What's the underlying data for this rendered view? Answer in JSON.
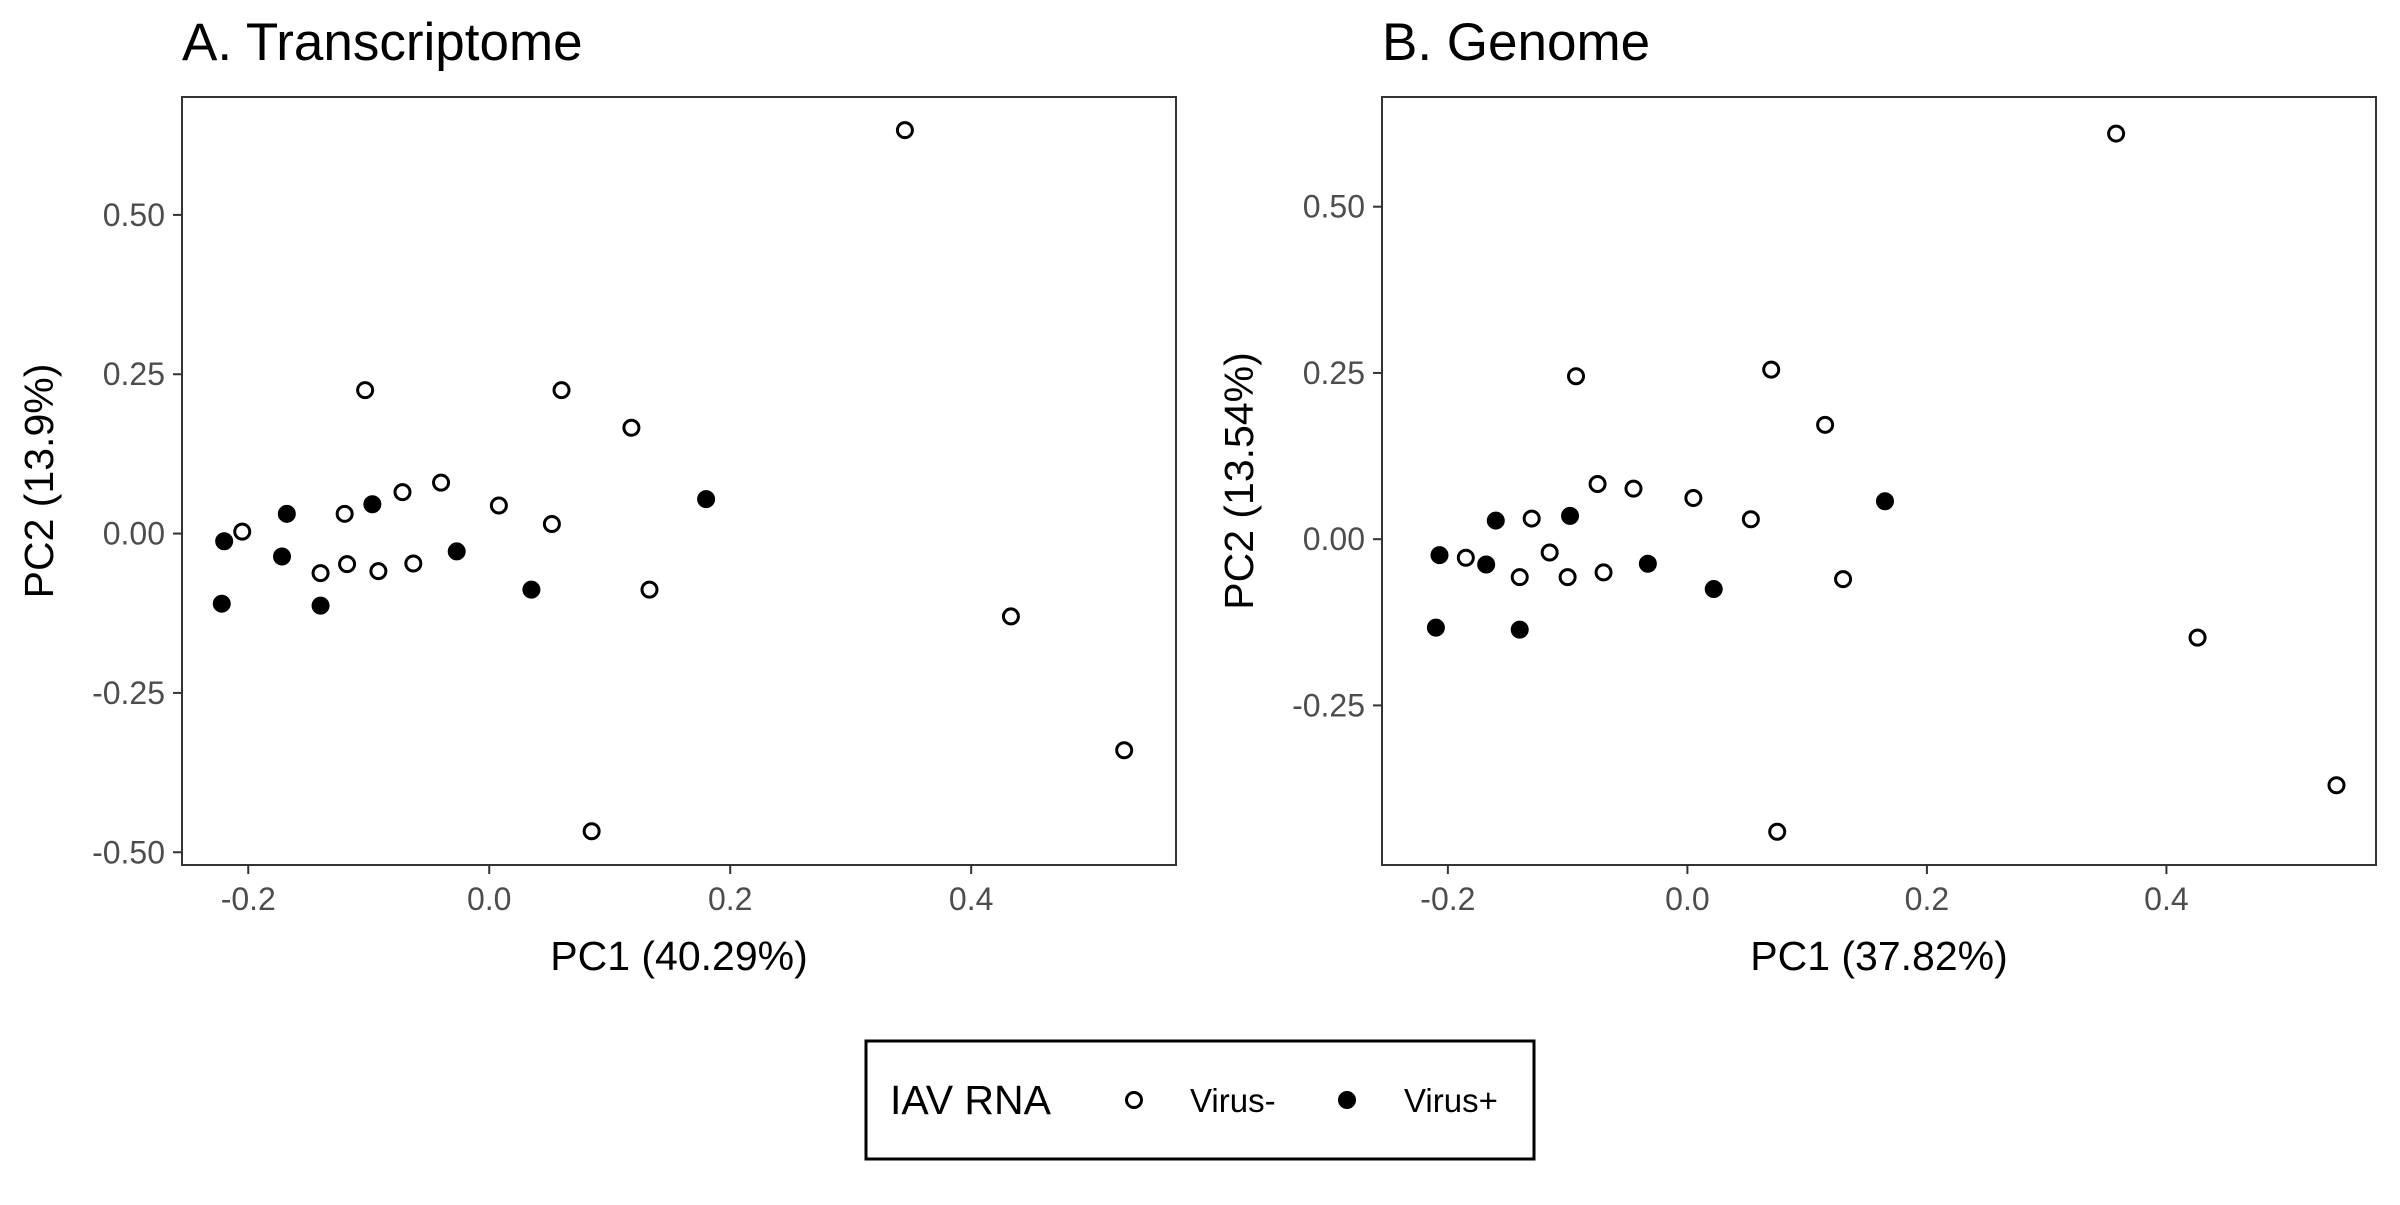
{
  "chart_data": [
    {
      "type": "scatter",
      "title": "A. Transcriptome",
      "xlabel": "PC1 (40.29%)",
      "ylabel": "PC2 (13.9%)",
      "xlim": [
        -0.255,
        0.57
      ],
      "ylim": [
        -0.52,
        0.685
      ],
      "xticks": [
        -0.2,
        0.0,
        0.2,
        0.4
      ],
      "xtick_labels": [
        "-0.2",
        "0.0",
        "0.2",
        "0.4"
      ],
      "yticks": [
        0.5,
        0.25,
        0.0,
        -0.25,
        -0.5
      ],
      "ytick_labels": [
        "0.50",
        "0.25",
        "0.00",
        "-0.25",
        "-0.50"
      ],
      "grid": false,
      "series": [
        {
          "name": "Virus-",
          "points": [
            {
              "x": -0.205,
              "y": 0.003
            },
            {
              "x": -0.14,
              "y": -0.062
            },
            {
              "x": -0.12,
              "y": 0.031
            },
            {
              "x": -0.118,
              "y": -0.048
            },
            {
              "x": -0.103,
              "y": 0.225
            },
            {
              "x": -0.092,
              "y": -0.059
            },
            {
              "x": -0.072,
              "y": 0.065
            },
            {
              "x": -0.063,
              "y": -0.047
            },
            {
              "x": -0.04,
              "y": 0.08
            },
            {
              "x": 0.008,
              "y": 0.044
            },
            {
              "x": 0.052,
              "y": 0.015
            },
            {
              "x": 0.06,
              "y": 0.225
            },
            {
              "x": 0.118,
              "y": 0.166
            },
            {
              "x": 0.133,
              "y": -0.088
            },
            {
              "x": 0.085,
              "y": -0.467
            },
            {
              "x": 0.345,
              "y": 0.633
            },
            {
              "x": 0.433,
              "y": -0.13
            },
            {
              "x": 0.527,
              "y": -0.34
            }
          ]
        },
        {
          "name": "Virus+",
          "points": [
            {
              "x": -0.222,
              "y": -0.11
            },
            {
              "x": -0.22,
              "y": -0.012
            },
            {
              "x": -0.172,
              "y": -0.036
            },
            {
              "x": -0.168,
              "y": 0.031
            },
            {
              "x": -0.14,
              "y": -0.113
            },
            {
              "x": -0.097,
              "y": 0.046
            },
            {
              "x": -0.027,
              "y": -0.028
            },
            {
              "x": 0.035,
              "y": -0.088
            },
            {
              "x": 0.18,
              "y": 0.054
            }
          ]
        }
      ]
    },
    {
      "type": "scatter",
      "title": "B. Genome",
      "xlabel": "PC1 (37.82%)",
      "ylabel": "PC2 (13.54%)",
      "xlim": [
        -0.255,
        0.575
      ],
      "ylim": [
        -0.49,
        0.665
      ],
      "xticks": [
        -0.2,
        0.0,
        0.2,
        0.4
      ],
      "xtick_labels": [
        "-0.2",
        "0.0",
        "0.2",
        "0.4"
      ],
      "yticks": [
        0.5,
        0.25,
        0.0,
        -0.25
      ],
      "ytick_labels": [
        "0.50",
        "0.25",
        "0.00",
        "-0.25"
      ],
      "grid": false,
      "series": [
        {
          "name": "Virus-",
          "points": [
            {
              "x": -0.185,
              "y": -0.028
            },
            {
              "x": -0.14,
              "y": -0.057
            },
            {
              "x": -0.13,
              "y": 0.031
            },
            {
              "x": -0.115,
              "y": -0.02
            },
            {
              "x": -0.1,
              "y": -0.057
            },
            {
              "x": -0.093,
              "y": 0.245
            },
            {
              "x": -0.075,
              "y": 0.083
            },
            {
              "x": -0.07,
              "y": -0.05
            },
            {
              "x": -0.045,
              "y": 0.076
            },
            {
              "x": 0.005,
              "y": 0.062
            },
            {
              "x": 0.053,
              "y": 0.03
            },
            {
              "x": 0.07,
              "y": 0.255
            },
            {
              "x": 0.115,
              "y": 0.172
            },
            {
              "x": 0.13,
              "y": -0.06
            },
            {
              "x": 0.075,
              "y": -0.44
            },
            {
              "x": 0.358,
              "y": 0.61
            },
            {
              "x": 0.426,
              "y": -0.148
            },
            {
              "x": 0.542,
              "y": -0.37
            }
          ]
        },
        {
          "name": "Virus+",
          "points": [
            {
              "x": -0.21,
              "y": -0.133
            },
            {
              "x": -0.207,
              "y": -0.024
            },
            {
              "x": -0.168,
              "y": -0.038
            },
            {
              "x": -0.16,
              "y": 0.028
            },
            {
              "x": -0.14,
              "y": -0.136
            },
            {
              "x": -0.098,
              "y": 0.035
            },
            {
              "x": -0.033,
              "y": -0.037
            },
            {
              "x": 0.022,
              "y": -0.075
            },
            {
              "x": 0.165,
              "y": 0.057
            }
          ]
        }
      ]
    }
  ],
  "legend": {
    "title": "IAV RNA",
    "placement": "bottom",
    "entries": [
      {
        "label": "Virus-",
        "style": "open"
      },
      {
        "label": "Virus+",
        "style": "filled"
      }
    ]
  },
  "colors": {
    "point": "#000000",
    "panel_border": "#333333",
    "tick_text": "#4d4d4d"
  }
}
